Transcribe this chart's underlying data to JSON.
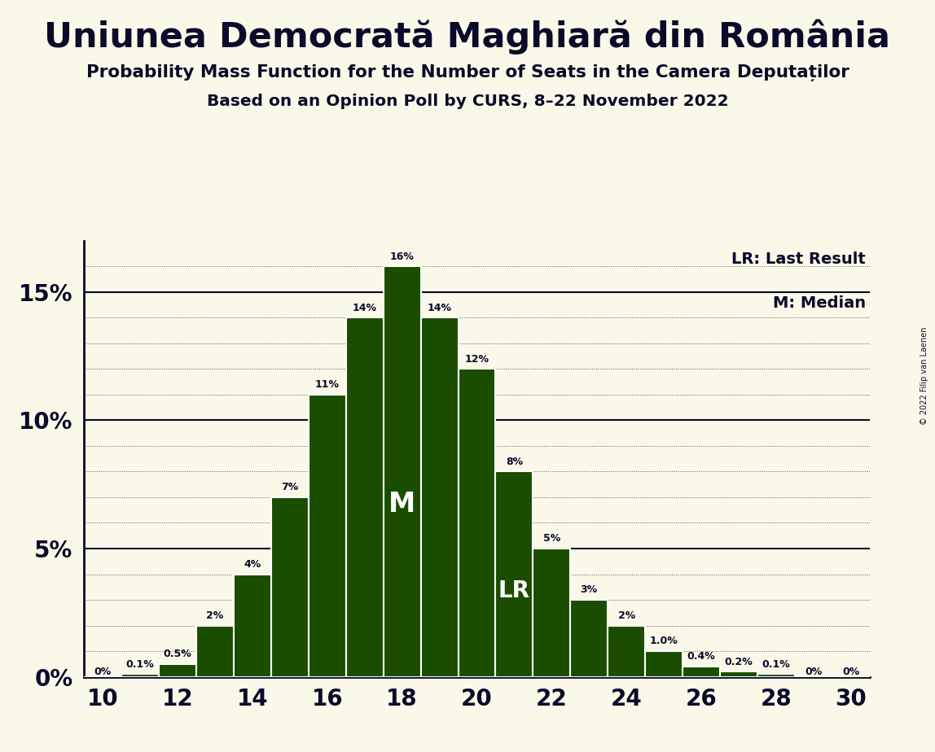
{
  "title": "Uniunea Democrată Maghiară din România",
  "subtitle1": "Probability Mass Function for the Number of Seats in the Camera Deputaților",
  "subtitle2": "Based on an Opinion Poll by CURS, 8–22 November 2022",
  "copyright": "© 2022 Filip van Laenen",
  "legend_lr": "LR: Last Result",
  "legend_m": "M: Median",
  "background_color": "#faf8e8",
  "bar_color": "#1a4d00",
  "bar_edge_color": "#ffffff",
  "text_color": "#0a0a2a",
  "seats": [
    10,
    11,
    12,
    13,
    14,
    15,
    16,
    17,
    18,
    19,
    20,
    21,
    22,
    23,
    24,
    25,
    26,
    27,
    28,
    29,
    30
  ],
  "probs": [
    0.0,
    0.1,
    0.5,
    2.0,
    4.0,
    7.0,
    11.0,
    14.0,
    16.0,
    14.0,
    12.0,
    8.0,
    5.0,
    3.0,
    2.0,
    1.0,
    0.4,
    0.2,
    0.1,
    0.0,
    0.0
  ],
  "labels": [
    "0%",
    "0.1%",
    "0.5%",
    "2%",
    "4%",
    "7%",
    "11%",
    "14%",
    "16%",
    "14%",
    "12%",
    "8%",
    "5%",
    "3%",
    "2%",
    "1.0%",
    "0.4%",
    "0.2%",
    "0.1%",
    "0%",
    "0%"
  ],
  "median_seat": 18,
  "lr_seat": 21,
  "ylim": [
    0,
    17
  ],
  "yticks": [
    0,
    5,
    10,
    15
  ],
  "ytick_labels": [
    "0%",
    "5%",
    "10%",
    "15%"
  ],
  "xticks": [
    10,
    12,
    14,
    16,
    18,
    20,
    22,
    24,
    26,
    28,
    30
  ]
}
